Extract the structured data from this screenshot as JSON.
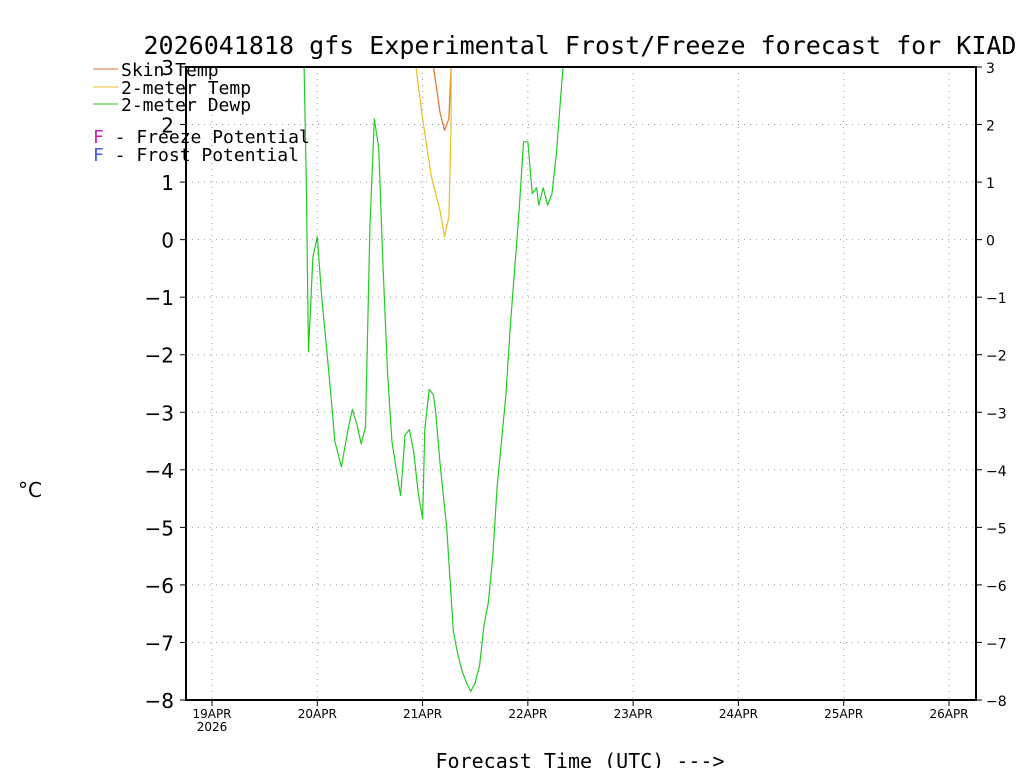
{
  "chart_data": {
    "type": "line",
    "title": "2026041818 gfs Experimental Frost/Freeze forecast for KIAD",
    "xlabel": "Forecast Time (UTC) --->",
    "ylabel": "°C",
    "ylim": [
      -8,
      3
    ],
    "xlim": [
      0,
      177
    ],
    "yticks": [
      3,
      2,
      1,
      0,
      -1,
      -2,
      -3,
      -4,
      -5,
      -6,
      -7,
      -8
    ],
    "grid": true,
    "x_units": "hours since 19APR 00 UTC",
    "xticks": [
      {
        "x": 0,
        "label": "19APR",
        "sublabel": "2026"
      },
      {
        "x": 24,
        "label": "20APR"
      },
      {
        "x": 48,
        "label": "21APR"
      },
      {
        "x": 72,
        "label": "22APR"
      },
      {
        "x": 96,
        "label": "23APR"
      },
      {
        "x": 120,
        "label": "24APR"
      },
      {
        "x": 144,
        "label": "25APR"
      },
      {
        "x": 168,
        "label": "26APR"
      }
    ],
    "legend": {
      "placement": "top-left",
      "entries": [
        {
          "name": "Skin Temp",
          "color": "#e07030"
        },
        {
          "name": "2-meter Temp",
          "color": "#e8c020"
        },
        {
          "name": "2-meter Dewp",
          "color": "#22cc22"
        }
      ],
      "symbols": [
        {
          "marker": "F",
          "text": " - Freeze Potential",
          "color": "#cc22aa"
        },
        {
          "marker": "F",
          "text": " - Frost Potential",
          "color": "#4455ee"
        }
      ]
    },
    "series": [
      {
        "name": "Skin Temp",
        "color": "#e07030",
        "points": [
          [
            50.5,
            3.0
          ],
          [
            52,
            2.2
          ],
          [
            53,
            1.9
          ],
          [
            54,
            2.1
          ],
          [
            54.5,
            3.0
          ]
        ]
      },
      {
        "name": "2-meter Temp",
        "color": "#e8c020",
        "points": [
          [
            46.5,
            3.0
          ],
          [
            48,
            2.1
          ],
          [
            50,
            1.1
          ],
          [
            52,
            0.5
          ],
          [
            53,
            0.05
          ],
          [
            54,
            0.4
          ],
          [
            54.5,
            2.0
          ],
          [
            54.5,
            3.0
          ]
        ]
      },
      {
        "name": "2-meter Dewp",
        "color": "#22cc22",
        "points": [
          [
            21,
            3.0
          ],
          [
            21.5,
            1.0
          ],
          [
            22,
            -1.95
          ],
          [
            23,
            -0.3
          ],
          [
            24,
            0.05
          ],
          [
            25,
            -1.0
          ],
          [
            26,
            -1.8
          ],
          [
            27,
            -2.6
          ],
          [
            28,
            -3.5
          ],
          [
            29.5,
            -3.95
          ],
          [
            31,
            -3.3
          ],
          [
            32,
            -2.95
          ],
          [
            33,
            -3.2
          ],
          [
            34,
            -3.55
          ],
          [
            35,
            -3.25
          ],
          [
            36,
            0.2
          ],
          [
            37,
            2.1
          ],
          [
            38,
            1.6
          ],
          [
            39,
            -0.5
          ],
          [
            40,
            -2.3
          ],
          [
            41,
            -3.5
          ],
          [
            42,
            -4.0
          ],
          [
            43,
            -4.45
          ],
          [
            44,
            -3.4
          ],
          [
            45,
            -3.3
          ],
          [
            46,
            -3.7
          ],
          [
            47,
            -4.4
          ],
          [
            48,
            -4.85
          ],
          [
            48.5,
            -3.3
          ],
          [
            49.5,
            -2.6
          ],
          [
            50.5,
            -2.7
          ],
          [
            51,
            -3.0
          ],
          [
            52,
            -3.9
          ],
          [
            53.5,
            -5.0
          ],
          [
            55,
            -6.8
          ],
          [
            56,
            -7.2
          ],
          [
            57,
            -7.5
          ],
          [
            58,
            -7.7
          ],
          [
            59,
            -7.85
          ],
          [
            60,
            -7.7
          ],
          [
            61,
            -7.4
          ],
          [
            62,
            -6.7
          ],
          [
            63,
            -6.3
          ],
          [
            64,
            -5.5
          ],
          [
            65,
            -4.3
          ],
          [
            66,
            -3.5
          ],
          [
            67,
            -2.7
          ],
          [
            68,
            -1.5
          ],
          [
            69,
            -0.5
          ],
          [
            70,
            0.5
          ],
          [
            71,
            1.7
          ],
          [
            72,
            1.7
          ],
          [
            73,
            0.8
          ],
          [
            74,
            0.9
          ],
          [
            74.5,
            0.6
          ],
          [
            75.5,
            0.9
          ],
          [
            76.5,
            0.6
          ],
          [
            77.5,
            0.8
          ],
          [
            78.5,
            1.5
          ],
          [
            80,
            3.0
          ]
        ]
      }
    ]
  }
}
